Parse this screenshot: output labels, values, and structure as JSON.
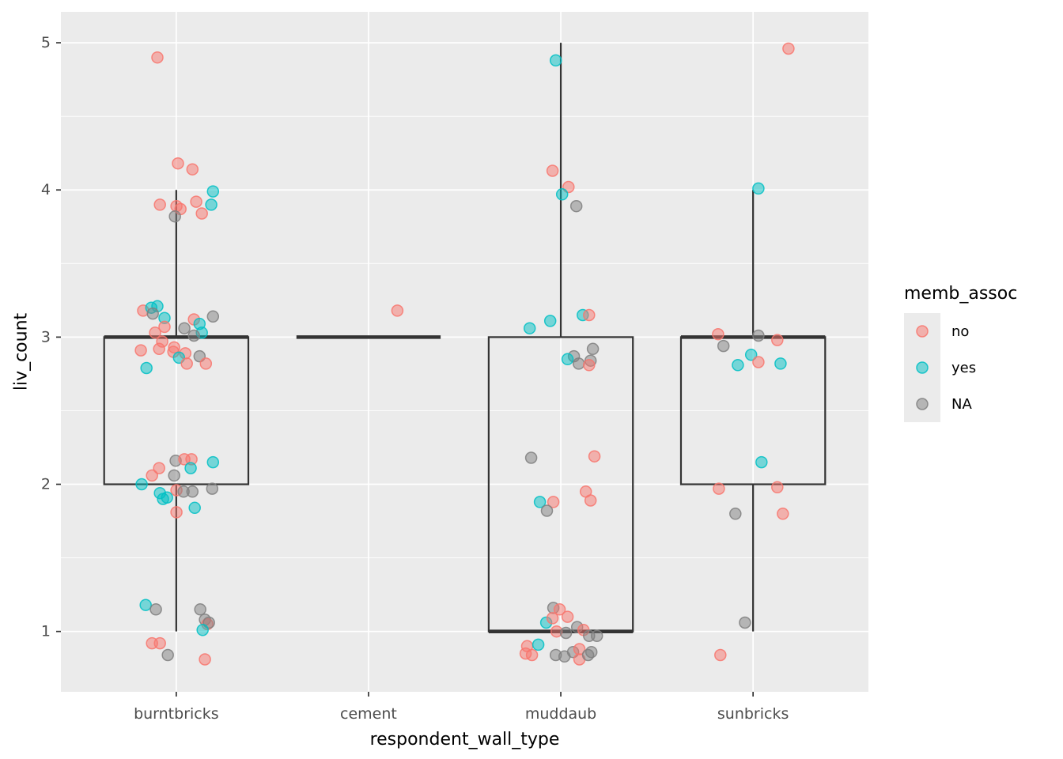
{
  "figure": {
    "xlabel": "respondent_wall_type",
    "ylabel": "liv_count"
  },
  "chart_data": {
    "type": "boxplot_with_jittered_points",
    "title": "",
    "xlabel": "respondent_wall_type",
    "ylabel": "liv_count",
    "categories": [
      "burntbricks",
      "cement",
      "muddaub",
      "sunbricks"
    ],
    "y_ticks": [
      1,
      2,
      3,
      4,
      5
    ],
    "y_minor_gridlines": [
      0.5,
      1.5,
      2.5,
      3.5,
      4.5
    ],
    "ylim": [
      0.59,
      5.21
    ],
    "x_domain": [
      0.4,
      4.6
    ],
    "grid": true,
    "panel_background": "#EBEBEB",
    "gridline_color": "#FFFFFF",
    "box_color": "#333333",
    "tick_label_color": "#4D4D4D",
    "legend": {
      "title": "memb_assoc",
      "position": "right",
      "entries": [
        {
          "label": "no",
          "color": "#F8766D"
        },
        {
          "label": "yes",
          "color": "#00BFC4"
        },
        {
          "label": "NA",
          "color": "#7F7F7F"
        }
      ]
    },
    "group_colors": {
      "no": "#F8766D",
      "yes": "#00BFC4",
      "NA": "#7F7F7F"
    },
    "boxplots": [
      {
        "category": "burntbricks",
        "x": 1,
        "q1": 2,
        "median": 3,
        "q3": 3,
        "whisker_low": 1,
        "whisker_high": 4
      },
      {
        "category": "cement",
        "x": 2,
        "q1": 3,
        "median": 3,
        "q3": 3,
        "whisker_low": 3,
        "whisker_high": 3
      },
      {
        "category": "muddaub",
        "x": 3,
        "q1": 1,
        "median": 1,
        "q3": 3,
        "whisker_low": 1,
        "whisker_high": 5
      },
      {
        "category": "sunbricks",
        "x": 4,
        "q1": 2,
        "median": 3,
        "q3": 3,
        "whisker_low": 1,
        "whisker_high": 4
      }
    ],
    "points": [
      [
        0.902,
        4.9,
        "no"
      ],
      [
        1.009,
        4.18,
        "no"
      ],
      [
        1.084,
        4.14,
        "no"
      ],
      [
        0.915,
        3.9,
        "no"
      ],
      [
        1.001,
        3.89,
        "no"
      ],
      [
        1.022,
        3.87,
        "no"
      ],
      [
        1.104,
        3.92,
        "no"
      ],
      [
        1.133,
        3.84,
        "no"
      ],
      [
        1.191,
        3.99,
        "yes"
      ],
      [
        1.182,
        3.9,
        "yes"
      ],
      [
        0.993,
        3.82,
        "NA"
      ],
      [
        0.828,
        3.18,
        "no"
      ],
      [
        0.87,
        3.2,
        "yes"
      ],
      [
        0.902,
        3.21,
        "yes"
      ],
      [
        0.878,
        3.16,
        "NA"
      ],
      [
        0.939,
        3.13,
        "yes"
      ],
      [
        0.939,
        3.07,
        "no"
      ],
      [
        1.092,
        3.12,
        "no"
      ],
      [
        1.121,
        3.09,
        "yes"
      ],
      [
        1.191,
        3.14,
        "NA"
      ],
      [
        1.042,
        3.06,
        "NA"
      ],
      [
        1.133,
        3.03,
        "yes"
      ],
      [
        1.092,
        3.01,
        "NA"
      ],
      [
        0.89,
        3.03,
        "no"
      ],
      [
        0.927,
        2.97,
        "no"
      ],
      [
        0.911,
        2.92,
        "no"
      ],
      [
        0.816,
        2.91,
        "no"
      ],
      [
        0.989,
        2.93,
        "no"
      ],
      [
        0.985,
        2.9,
        "no"
      ],
      [
        1.047,
        2.89,
        "no"
      ],
      [
        1.014,
        2.86,
        "yes"
      ],
      [
        1.055,
        2.82,
        "no"
      ],
      [
        1.121,
        2.87,
        "NA"
      ],
      [
        1.154,
        2.82,
        "no"
      ],
      [
        0.845,
        2.79,
        "yes"
      ],
      [
        0.997,
        2.16,
        "NA"
      ],
      [
        1.042,
        2.17,
        "no"
      ],
      [
        1.079,
        2.17,
        "no"
      ],
      [
        1.191,
        2.15,
        "yes"
      ],
      [
        0.911,
        2.11,
        "no"
      ],
      [
        0.874,
        2.06,
        "no"
      ],
      [
        1.075,
        2.11,
        "yes"
      ],
      [
        0.989,
        2.06,
        "NA"
      ],
      [
        0.82,
        2.0,
        "yes"
      ],
      [
        1.001,
        1.96,
        "no"
      ],
      [
        0.915,
        1.94,
        "yes"
      ],
      [
        0.931,
        1.9,
        "yes"
      ],
      [
        0.952,
        1.91,
        "yes"
      ],
      [
        1.038,
        1.95,
        "NA"
      ],
      [
        1.084,
        1.95,
        "NA"
      ],
      [
        1.187,
        1.97,
        "NA"
      ],
      [
        1.096,
        1.84,
        "yes"
      ],
      [
        1.001,
        1.81,
        "no"
      ],
      [
        0.841,
        1.18,
        "yes"
      ],
      [
        0.894,
        1.15,
        "NA"
      ],
      [
        1.125,
        1.15,
        "NA"
      ],
      [
        1.149,
        1.08,
        "NA"
      ],
      [
        1.162,
        1.05,
        "no"
      ],
      [
        1.17,
        1.06,
        "NA"
      ],
      [
        1.137,
        1.01,
        "yes"
      ],
      [
        0.874,
        0.92,
        "no"
      ],
      [
        0.915,
        0.92,
        "no"
      ],
      [
        0.956,
        0.84,
        "NA"
      ],
      [
        1.149,
        0.81,
        "no"
      ],
      [
        2.15,
        3.18,
        "no"
      ],
      [
        2.974,
        4.88,
        "yes"
      ],
      [
        2.957,
        4.13,
        "no"
      ],
      [
        3.04,
        4.02,
        "no"
      ],
      [
        3.007,
        3.97,
        "yes"
      ],
      [
        3.081,
        3.89,
        "NA"
      ],
      [
        3.114,
        3.15,
        "yes"
      ],
      [
        3.147,
        3.15,
        "no"
      ],
      [
        2.945,
        3.11,
        "yes"
      ],
      [
        2.838,
        3.06,
        "yes"
      ],
      [
        3.167,
        2.92,
        "NA"
      ],
      [
        3.068,
        2.87,
        "NA"
      ],
      [
        3.035,
        2.85,
        "yes"
      ],
      [
        3.093,
        2.82,
        "NA"
      ],
      [
        3.155,
        2.84,
        "NA"
      ],
      [
        3.147,
        2.81,
        "no"
      ],
      [
        2.846,
        2.18,
        "NA"
      ],
      [
        3.175,
        2.19,
        "no"
      ],
      [
        3.13,
        1.95,
        "no"
      ],
      [
        3.155,
        1.89,
        "no"
      ],
      [
        2.891,
        1.88,
        "yes"
      ],
      [
        2.961,
        1.88,
        "no"
      ],
      [
        2.928,
        1.82,
        "NA"
      ],
      [
        2.961,
        1.16,
        "NA"
      ],
      [
        2.994,
        1.15,
        "no"
      ],
      [
        3.035,
        1.1,
        "no"
      ],
      [
        2.924,
        1.06,
        "yes"
      ],
      [
        2.957,
        1.09,
        "no"
      ],
      [
        2.978,
        1.0,
        "no"
      ],
      [
        3.027,
        0.99,
        "NA"
      ],
      [
        3.085,
        1.03,
        "NA"
      ],
      [
        3.118,
        1.01,
        "no"
      ],
      [
        3.147,
        0.97,
        "NA"
      ],
      [
        3.188,
        0.97,
        "NA"
      ],
      [
        2.825,
        0.9,
        "no"
      ],
      [
        2.883,
        0.91,
        "yes"
      ],
      [
        2.817,
        0.85,
        "no"
      ],
      [
        2.85,
        0.84,
        "no"
      ],
      [
        2.974,
        0.84,
        "NA"
      ],
      [
        3.019,
        0.83,
        "NA"
      ],
      [
        3.064,
        0.86,
        "NA"
      ],
      [
        3.097,
        0.88,
        "no"
      ],
      [
        3.097,
        0.81,
        "no"
      ],
      [
        3.142,
        0.84,
        "NA"
      ],
      [
        3.159,
        0.86,
        "NA"
      ],
      [
        4.184,
        4.96,
        "no"
      ],
      [
        4.028,
        4.01,
        "yes"
      ],
      [
        3.818,
        3.02,
        "no"
      ],
      [
        4.028,
        3.01,
        "NA"
      ],
      [
        4.126,
        2.98,
        "no"
      ],
      [
        3.846,
        2.94,
        "NA"
      ],
      [
        3.99,
        2.88,
        "yes"
      ],
      [
        4.028,
        2.83,
        "no"
      ],
      [
        3.921,
        2.81,
        "yes"
      ],
      [
        4.143,
        2.82,
        "yes"
      ],
      [
        4.044,
        2.15,
        "yes"
      ],
      [
        3.822,
        1.97,
        "no"
      ],
      [
        4.126,
        1.98,
        "no"
      ],
      [
        3.908,
        1.8,
        "NA"
      ],
      [
        4.155,
        1.8,
        "no"
      ],
      [
        3.958,
        1.06,
        "NA"
      ],
      [
        3.83,
        0.84,
        "no"
      ]
    ]
  }
}
